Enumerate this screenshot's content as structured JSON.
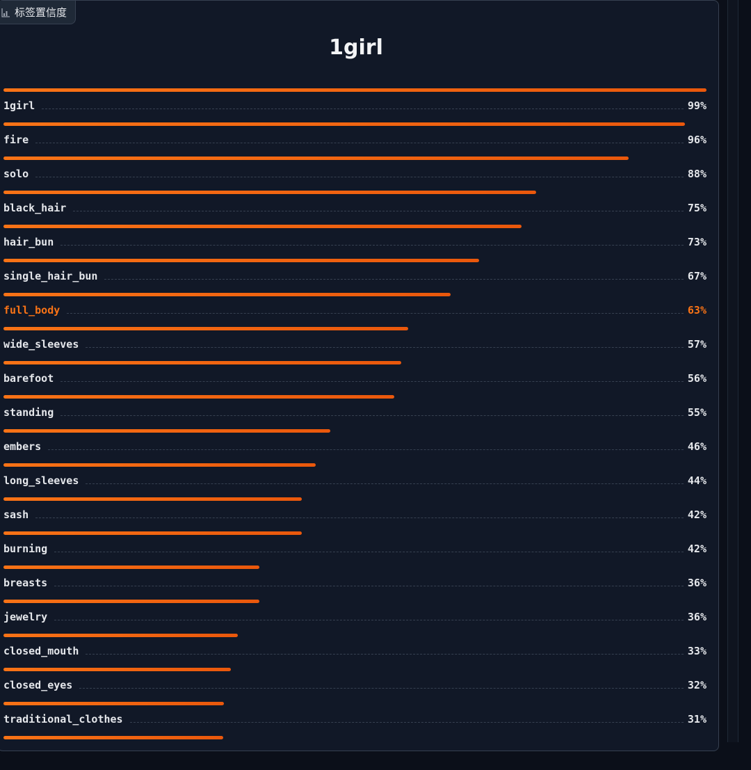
{
  "panel": {
    "chip_label": "标签置信度",
    "title": "1girl"
  },
  "accent_color": "#f97316",
  "chart_data": {
    "type": "bar",
    "categories": [
      "1girl",
      "fire",
      "solo",
      "black_hair",
      "hair_bun",
      "single_hair_bun",
      "full_body",
      "wide_sleeves",
      "barefoot",
      "standing",
      "embers",
      "long_sleeves",
      "sash",
      "burning",
      "breasts",
      "jewelry",
      "closed_mouth",
      "closed_eyes",
      "traditional_clothes"
    ],
    "values": [
      0.99,
      0.96,
      0.88,
      0.75,
      0.73,
      0.67,
      0.63,
      0.57,
      0.56,
      0.55,
      0.46,
      0.44,
      0.42,
      0.42,
      0.36,
      0.36,
      0.33,
      0.32,
      0.31
    ],
    "labels": [
      "99%",
      "96%",
      "88%",
      "75%",
      "73%",
      "67%",
      "63%",
      "57%",
      "56%",
      "55%",
      "46%",
      "44%",
      "42%",
      "42%",
      "36%",
      "36%",
      "33%",
      "32%",
      "31%"
    ],
    "extra_bar_value": 0.3,
    "highlighted": "full_body"
  }
}
